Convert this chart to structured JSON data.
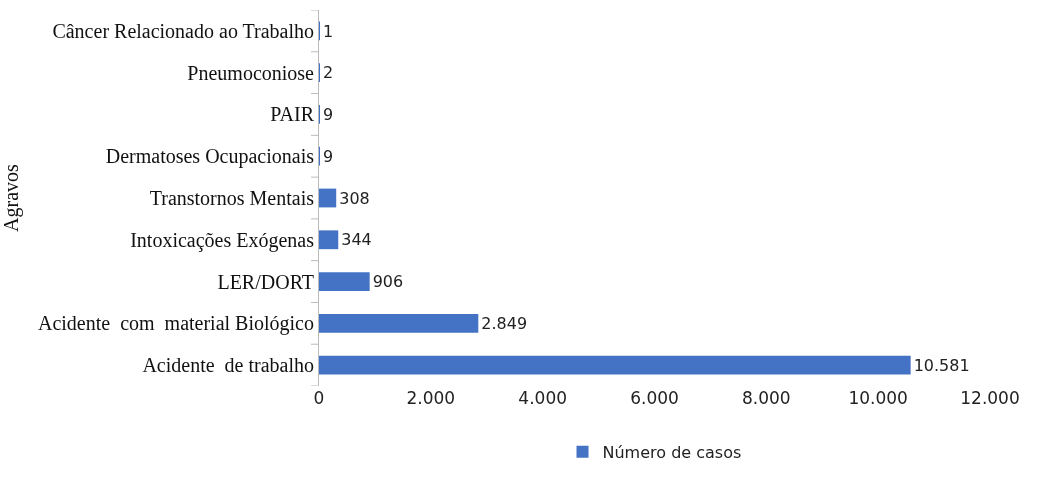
{
  "chart_data": {
    "type": "bar",
    "orientation": "horizontal",
    "ylabel": "Agravos",
    "categories": [
      "Câncer Relacionado ao Trabalho",
      "Pneumoconiose",
      "PAIR",
      "Dermatoses Ocupacionais",
      "Transtornos Mentais",
      "Intoxicações Exógenas",
      "LER/DORT",
      "Acidente  com  material Biológico",
      "Acidente  de trabalho"
    ],
    "series": [
      {
        "name": "Número de casos",
        "color": "#4472c4",
        "values": [
          1,
          2,
          9,
          9,
          308,
          344,
          906,
          2849,
          10581
        ],
        "value_labels": [
          "1",
          "2",
          "9",
          "9",
          "308",
          "344",
          "906",
          "2.849",
          "10.581"
        ]
      }
    ],
    "xlim": [
      0,
      12000
    ],
    "xticks": [
      0,
      {
        "value": 2000,
        "label": "2.000"
      },
      {
        "value": 4000,
        "label": "4.000"
      },
      {
        "value": 6000,
        "label": "6.000"
      },
      {
        "value": 8000,
        "label": "8.000"
      },
      {
        "value": 10000,
        "label": "10.000"
      },
      {
        "value": 12000,
        "label": "12.000"
      }
    ],
    "grid": false,
    "legend": "bottom"
  }
}
